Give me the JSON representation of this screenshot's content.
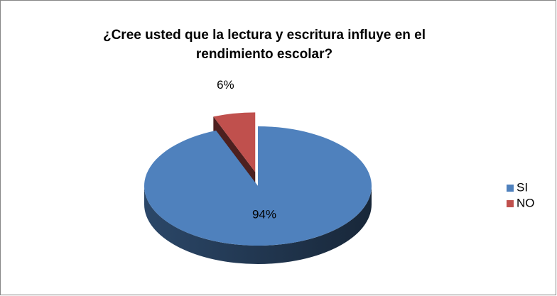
{
  "chart_data": {
    "type": "pie",
    "title": "¿Cree usted que la lectura y escritura influye en el rendimiento escolar?",
    "categories": [
      "SI",
      "NO"
    ],
    "values": [
      94,
      6
    ],
    "value_labels": [
      "94%",
      "6%"
    ],
    "colors": [
      "#4f81bd",
      "#c0504d"
    ],
    "legend": "right"
  }
}
